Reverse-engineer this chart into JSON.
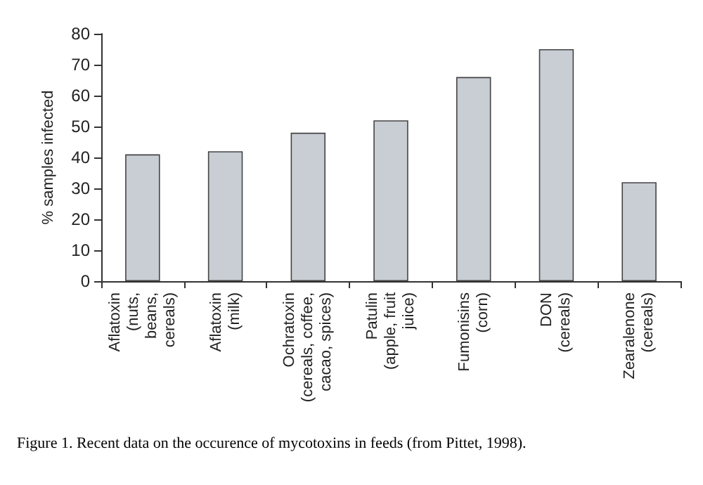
{
  "chart_data": {
    "type": "bar",
    "categories": [
      "Aflatoxin\n(nuts,\nbeans,\ncereals)",
      "Aflatoxin\n(milk)",
      "Ochratoxin\n(cereals, coffee,\ncacao, spices)",
      "Patulin\n(apple, fruit\njuice)",
      "Fumonisins\n(corn)",
      "DON\n(cereals)",
      "Zearalenone\n(cereals)"
    ],
    "values": [
      41,
      42,
      48,
      52,
      66,
      75,
      32
    ],
    "color": "#c9ced4",
    "ylabel": "% samples infected",
    "ylim": [
      0,
      80
    ],
    "yticks": [
      0,
      10,
      20,
      30,
      40,
      50,
      60,
      70,
      80
    ],
    "grid": false,
    "annotations": [
      "Figure 1. Recent data on the occurence of mycotoxins in feeds (from Pittet, 1998)."
    ]
  }
}
